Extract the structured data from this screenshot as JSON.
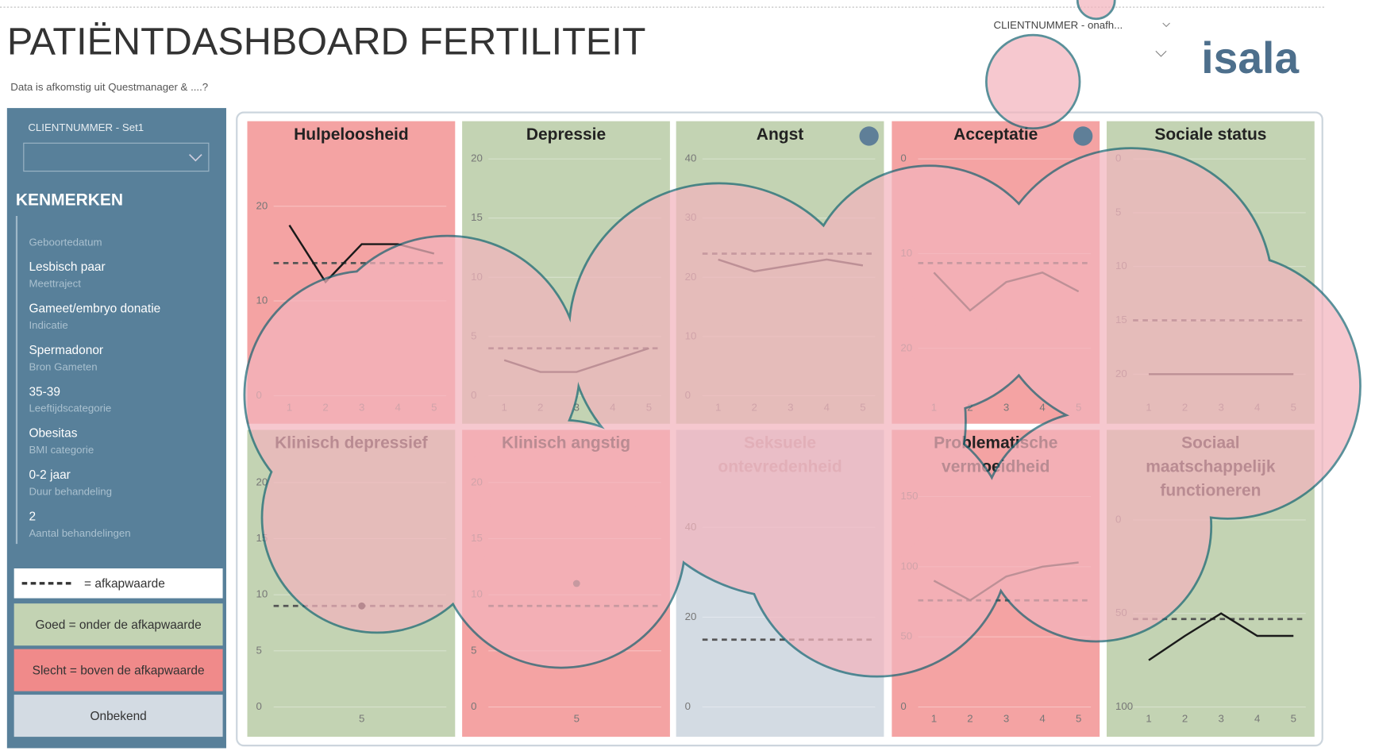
{
  "header": {
    "title": "PATIËNTDASHBOARD FERTILITEIT",
    "subtitle": "Data is afkomstig uit Questmanager & ....?",
    "client_select": "CLIENTNUMMER - onafh...",
    "logo": "isala"
  },
  "sidebar": {
    "client_select": "CLIENTNUMMER - Set1",
    "heading": "KENMERKEN",
    "items": [
      {
        "label": "Geboortedatum"
      },
      {
        "value": "Lesbisch paar",
        "label": "Meettraject"
      },
      {
        "value": "Gameet/embryo donatie",
        "label": "Indicatie"
      },
      {
        "value": "Spermadonor",
        "label": "Bron Gameten"
      },
      {
        "value": "35-39",
        "label": "Leeftijdscategorie"
      },
      {
        "value": "Obesitas",
        "label": "BMI categorie"
      },
      {
        "value": "0-2 jaar",
        "label": "Duur behandeling"
      },
      {
        "value": "2",
        "label": "Aantal behandelingen"
      }
    ],
    "legend": {
      "cutoff": "= afkapwaarde",
      "good": "Goed = onder de afkapwaarde",
      "bad": "Slecht = boven de afkapwaarde",
      "unknown": "Onbekend"
    }
  },
  "chart_data": [
    {
      "type": "line",
      "title": "Hulpeloosheid",
      "color": "#f4a3a3",
      "line_color": "#1a1a1a",
      "categories": [
        "1",
        "2",
        "3",
        "4",
        "5"
      ],
      "values": [
        18,
        12,
        16,
        16,
        15
      ],
      "threshold": 14,
      "ylim": [
        0,
        25
      ],
      "yticks": [
        0,
        10,
        20
      ]
    },
    {
      "type": "line",
      "title": "Depressie",
      "color": "#c3d3b3",
      "line_color": "#333333",
      "categories": [
        "1",
        "2",
        "3",
        "4",
        "5"
      ],
      "values": [
        3,
        2,
        2,
        3,
        4
      ],
      "threshold": 4,
      "ylim": [
        0,
        20
      ],
      "yticks": [
        0,
        5,
        10,
        15,
        20
      ]
    },
    {
      "type": "line",
      "title": "Angst",
      "color": "#c3d3b3",
      "line_color": "#333333",
      "categories": [
        "1",
        "2",
        "3",
        "4",
        "5"
      ],
      "values": [
        23,
        21,
        22,
        23,
        22
      ],
      "threshold": 24,
      "ylim": [
        0,
        40
      ],
      "yticks": [
        0,
        10,
        20,
        30,
        40
      ]
    },
    {
      "type": "line",
      "title": "Acceptatie",
      "color": "#f4a3a3",
      "line_color": "#333333",
      "y_inverted": true,
      "categories": [
        "1",
        "2",
        "3",
        "4",
        "5"
      ],
      "values": [
        12,
        16,
        13,
        12,
        14
      ],
      "threshold": 11,
      "ylim": [
        0,
        25
      ],
      "yticks": [
        0,
        10,
        20
      ]
    },
    {
      "type": "line",
      "title": "Sociale status",
      "color": "#c3d3b3",
      "line_color": "#333333",
      "y_inverted": true,
      "categories": [
        "1",
        "2",
        "3",
        "4",
        "5"
      ],
      "values": [
        20,
        20,
        20,
        20,
        20
      ],
      "threshold": 15,
      "ylim": [
        0,
        22
      ],
      "yticks": [
        0,
        5,
        10,
        15,
        20
      ]
    },
    {
      "type": "line",
      "title": "Klinisch depressief",
      "color": "#c3d3b3",
      "line_color": "#1a1a1a",
      "categories": [
        "5"
      ],
      "values": [
        9
      ],
      "threshold": 9,
      "ylim": [
        0,
        20
      ],
      "yticks": [
        0,
        5,
        10,
        15,
        20
      ]
    },
    {
      "type": "line",
      "title": "Klinisch angstig",
      "color": "#f4a3a3",
      "line_color": "#555555",
      "categories": [
        "5"
      ],
      "values": [
        11
      ],
      "threshold": 9,
      "ylim": [
        0,
        20
      ],
      "yticks": [
        0,
        5,
        10,
        15,
        20
      ]
    },
    {
      "type": "line",
      "title": "Seksuele ontevredenheid",
      "color": "#d3dbe3",
      "title_color": "#b8a4ab",
      "threshold": 15,
      "ylim": [
        0,
        50
      ],
      "yticks": [
        0,
        20,
        40
      ]
    },
    {
      "type": "line",
      "title": "Problematische vermoeidheid",
      "color": "#f4a3a3",
      "line_color": "#333333",
      "categories": [
        "1",
        "2",
        "3",
        "4",
        "5"
      ],
      "values": [
        90,
        76,
        93,
        100,
        103
      ],
      "threshold": 76,
      "ylim": [
        0,
        160
      ],
      "yticks": [
        0,
        50,
        100,
        150
      ]
    },
    {
      "type": "line",
      "title": "Sociaal maatschappelijk functioneren",
      "color": "#c3d3b3",
      "line_color": "#1a1a1a",
      "y_inverted": true,
      "categories": [
        "1",
        "2",
        "3",
        "4",
        "5"
      ],
      "values": [
        75,
        62,
        50,
        62,
        62
      ],
      "threshold": 53,
      "ylim": [
        -20,
        100
      ],
      "yticks": [
        0,
        50,
        100
      ]
    }
  ]
}
